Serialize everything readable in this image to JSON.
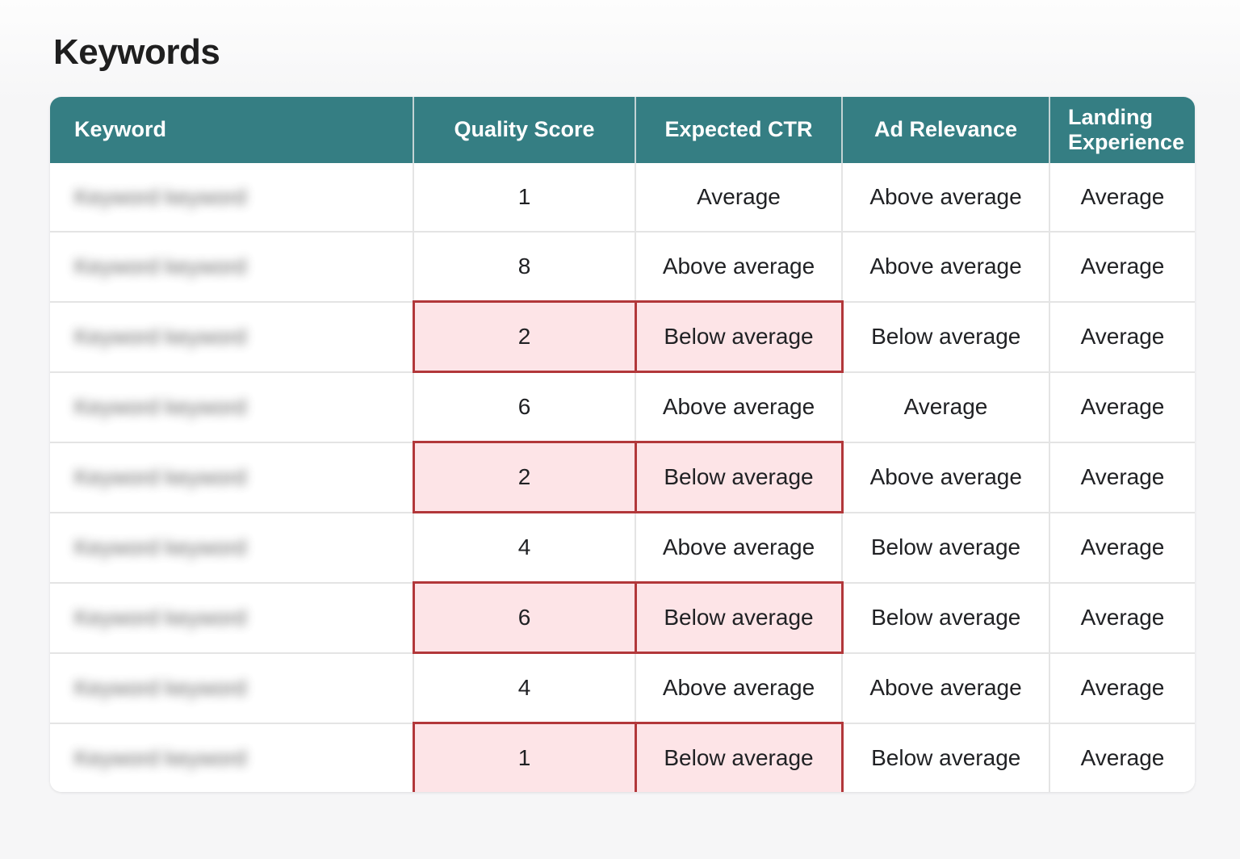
{
  "page": {
    "title": "Keywords"
  },
  "colors": {
    "header_background": "#357e83",
    "header_text": "#ffffff",
    "alert_cell_background": "#fde4e7",
    "alert_cell_border": "#b2373a",
    "cell_text": "#202124",
    "grid_line": "#e4e4e4",
    "page_background": "#f6f6f7"
  },
  "table": {
    "columns": [
      "Keyword",
      "Quality Score",
      "Expected CTR",
      "Ad Relevance",
      "Landing Experience"
    ],
    "redacted_keyword_placeholder": "Keyword keyword",
    "rows": [
      {
        "keyword_redacted": true,
        "quality_score": "1",
        "expected_ctr": "Average",
        "ad_relevance": "Above average",
        "landing_experience": "Average",
        "flagged": false
      },
      {
        "keyword_redacted": true,
        "quality_score": "8",
        "expected_ctr": "Above average",
        "ad_relevance": "Above average",
        "landing_experience": "Average",
        "flagged": false
      },
      {
        "keyword_redacted": true,
        "quality_score": "2",
        "expected_ctr": "Below average",
        "ad_relevance": "Below average",
        "landing_experience": "Average",
        "flagged": true
      },
      {
        "keyword_redacted": true,
        "quality_score": "6",
        "expected_ctr": "Above average",
        "ad_relevance": "Average",
        "landing_experience": "Average",
        "flagged": false
      },
      {
        "keyword_redacted": true,
        "quality_score": "2",
        "expected_ctr": "Below average",
        "ad_relevance": "Above average",
        "landing_experience": "Average",
        "flagged": true
      },
      {
        "keyword_redacted": true,
        "quality_score": "4",
        "expected_ctr": "Above average",
        "ad_relevance": "Below average",
        "landing_experience": "Average",
        "flagged": false
      },
      {
        "keyword_redacted": true,
        "quality_score": "6",
        "expected_ctr": "Below average",
        "ad_relevance": "Below average",
        "landing_experience": "Average",
        "flagged": true
      },
      {
        "keyword_redacted": true,
        "quality_score": "4",
        "expected_ctr": "Above average",
        "ad_relevance": "Above average",
        "landing_experience": "Average",
        "flagged": false
      },
      {
        "keyword_redacted": true,
        "quality_score": "1",
        "expected_ctr": "Below average",
        "ad_relevance": "Below average",
        "landing_experience": "Average",
        "flagged": true
      }
    ]
  }
}
